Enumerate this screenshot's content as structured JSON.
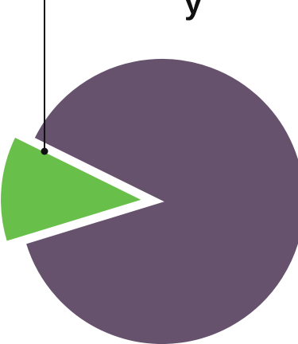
{
  "chart_data": {
    "type": "pie",
    "title": "",
    "slices": [
      {
        "label": "",
        "value": 12,
        "color": "#68C04B",
        "exploded": true
      },
      {
        "label": "",
        "value": 88,
        "color": "#67526E",
        "exploded": false
      }
    ],
    "legend": "none",
    "grid": false,
    "cropped_text_top": "y"
  }
}
